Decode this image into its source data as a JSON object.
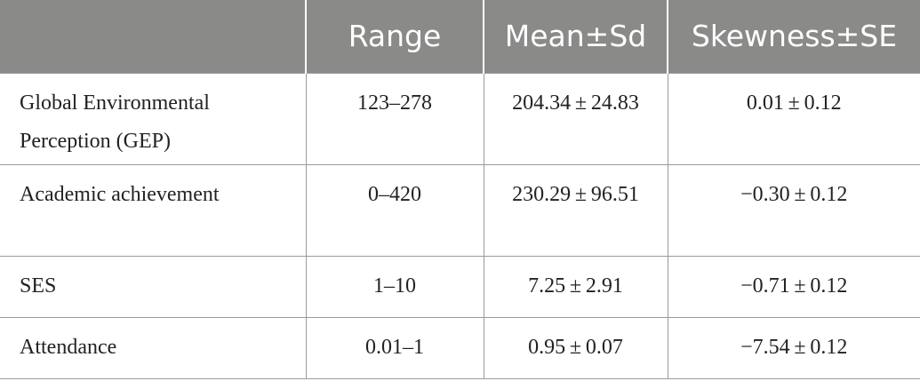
{
  "table": {
    "headers": [
      "",
      "Range",
      "Mean±Sd",
      "Skewness±SE"
    ],
    "rows": [
      {
        "label": "Global Environmental Perception (GEP)",
        "range": "123–278",
        "mean_sd": "204.34 ± 24.83",
        "skew_se": "0.01 ± 0.12"
      },
      {
        "label": "Academic achievement",
        "range": "0–420",
        "mean_sd": "230.29 ± 96.51",
        "skew_se": "−0.30 ± 0.12"
      },
      {
        "label": "SES",
        "range": "1–10",
        "mean_sd": "7.25 ± 2.91",
        "skew_se": "−0.71 ± 0.12"
      },
      {
        "label": "Attendance",
        "range": "0.01–1",
        "mean_sd": "0.95 ± 0.07",
        "skew_se": "−7.54 ± 0.12"
      }
    ]
  }
}
